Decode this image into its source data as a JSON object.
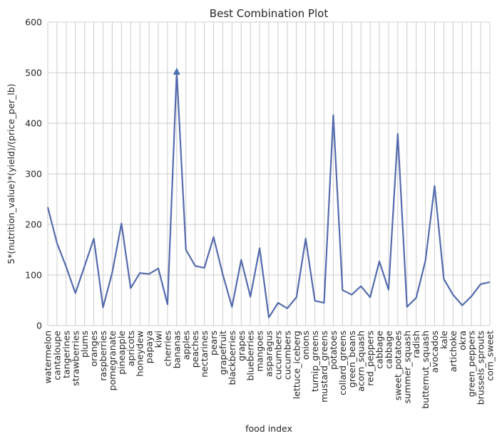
{
  "chart_data": {
    "type": "line",
    "title": "Best Combination Plot",
    "xlabel": "food index",
    "ylabel": "5*(nutrition_value)*(yield)/(price_per_lb)",
    "ylim": [
      0,
      600
    ],
    "yticks": [
      "0",
      "100",
      "200",
      "300",
      "400",
      "500",
      "600"
    ],
    "grid": true,
    "categories": [
      "watermelon",
      "cantaloupe",
      "tangerines",
      "strawberries",
      "plums",
      "oranges",
      "raspberries",
      "pomegranate",
      "pineapple",
      "apricots",
      "honeydew",
      "papaya",
      "kiwi",
      "cherries",
      "bananas",
      "apples",
      "peaches",
      "nectarines",
      "pears",
      "grapefruit",
      "blackberries",
      "grapes",
      "blueberries",
      "mangoes",
      "asparagus",
      "cucumbers",
      "cucumbers",
      "lettuce_iceberg",
      "onions",
      "turnip_greens",
      "mustard_greens",
      "potatoes",
      "collard_greens",
      "green_beans",
      "acorn_squash",
      "red_peppers",
      "cabbage",
      "cabbage",
      "sweet_potatoes",
      "summer_squash",
      "radish",
      "butternut_squash",
      "avocados",
      "kale",
      "artichoke",
      "okra",
      "green_peppers",
      "brussels_sprouts",
      "corn_sweet"
    ],
    "series": [
      {
        "values": [
          234,
          163,
          116,
          64,
          118,
          172,
          36,
          105,
          202,
          74,
          104,
          102,
          113,
          42,
          503,
          150,
          118,
          114,
          175,
          101,
          37,
          130,
          57,
          153,
          16,
          45,
          34,
          56,
          172,
          49,
          45,
          416,
          70,
          61,
          78,
          56,
          127,
          71,
          379,
          37,
          55,
          128,
          276,
          92,
          61,
          40,
          58,
          82,
          86
        ],
        "color": "#4c72b0",
        "overlay_color": "#6b5ea8"
      }
    ],
    "annotation": {
      "marker": "triangle-up",
      "index": 14,
      "color": "#4c72b0"
    }
  }
}
